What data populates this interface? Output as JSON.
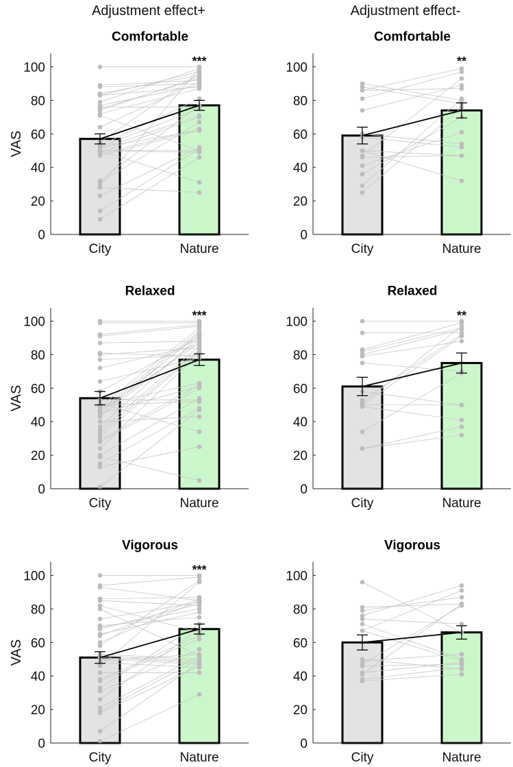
{
  "chart_data": {
    "type": "bar",
    "layout": "3 rows x 2 columns of paired bar charts with individual subject lines",
    "column_titles": [
      "Adjustment effect+",
      "Adjustment effect-"
    ],
    "categories": [
      "City",
      "Nature"
    ],
    "ylabel": "VAS",
    "ylim": [
      0,
      108
    ],
    "yticks": [
      0,
      20,
      40,
      60,
      80,
      100
    ],
    "grid": false,
    "colors": {
      "city": "#e3e3e3",
      "nature": "#ccf7cc",
      "points": "#bcbcbc",
      "lines": "#c6c6c6",
      "mean_line": "#000000"
    },
    "panels": [
      {
        "column": 0,
        "row": 0,
        "title": "Comfortable",
        "significance": "***",
        "means": [
          57,
          77
        ],
        "errors": [
          3,
          3
        ],
        "pairs": [
          [
            100,
            100
          ],
          [
            89,
            92
          ],
          [
            88,
            90
          ],
          [
            84,
            95
          ],
          [
            83,
            88
          ],
          [
            83,
            97
          ],
          [
            79,
            99
          ],
          [
            77,
            89
          ],
          [
            76,
            76
          ],
          [
            75,
            93
          ],
          [
            74,
            94
          ],
          [
            72,
            87
          ],
          [
            71,
            50
          ],
          [
            64,
            91
          ],
          [
            55,
            96
          ],
          [
            53,
            81
          ],
          [
            52,
            75
          ],
          [
            51,
            71
          ],
          [
            50,
            50
          ],
          [
            50,
            49
          ],
          [
            49,
            70
          ],
          [
            48,
            63
          ],
          [
            47,
            62
          ],
          [
            32,
            77
          ],
          [
            31,
            67
          ],
          [
            29,
            99
          ],
          [
            28,
            25
          ],
          [
            23,
            52
          ],
          [
            14,
            51
          ],
          [
            9,
            46
          ],
          [
            50,
            31
          ],
          [
            52,
            62
          ]
        ]
      },
      {
        "column": 1,
        "row": 0,
        "title": "Comfortable",
        "significance": "**",
        "means": [
          59,
          74
        ],
        "errors": [
          5,
          4.5
        ],
        "pairs": [
          [
            90,
            80
          ],
          [
            88,
            78
          ],
          [
            86,
            87
          ],
          [
            86,
            99
          ],
          [
            81,
            97
          ],
          [
            74,
            89
          ],
          [
            60,
            54
          ],
          [
            58,
            52
          ],
          [
            50,
            47
          ],
          [
            47,
            93
          ],
          [
            46,
            47
          ],
          [
            41,
            61
          ],
          [
            36,
            70
          ],
          [
            29,
            81
          ],
          [
            25,
            76
          ],
          [
            50,
            32
          ]
        ]
      },
      {
        "column": 0,
        "row": 1,
        "title": "Relaxed",
        "significance": "***",
        "means": [
          54,
          77
        ],
        "errors": [
          4,
          3.5
        ],
        "pairs": [
          [
            100,
            100
          ],
          [
            99,
            99
          ],
          [
            92,
            98
          ],
          [
            91,
            97
          ],
          [
            87,
            88
          ],
          [
            81,
            79
          ],
          [
            80,
            84
          ],
          [
            77,
            80
          ],
          [
            72,
            86
          ],
          [
            64,
            78
          ],
          [
            58,
            90
          ],
          [
            53,
            53
          ],
          [
            51,
            34
          ],
          [
            50,
            63
          ],
          [
            49,
            96
          ],
          [
            47,
            94
          ],
          [
            46,
            92
          ],
          [
            45,
            61
          ],
          [
            44,
            93
          ],
          [
            43,
            89
          ],
          [
            37,
            91
          ],
          [
            35,
            85
          ],
          [
            33,
            83
          ],
          [
            31,
            82
          ],
          [
            29,
            62
          ],
          [
            28,
            60
          ],
          [
            24,
            81
          ],
          [
            20,
            54
          ],
          [
            19,
            5
          ],
          [
            15,
            48
          ],
          [
            13,
            25
          ],
          [
            1,
            47
          ],
          [
            50,
            52
          ],
          [
            46,
            87
          ],
          [
            40,
            43
          ]
        ]
      },
      {
        "column": 1,
        "row": 1,
        "title": "Relaxed",
        "significance": "**",
        "means": [
          61,
          75
        ],
        "errors": [
          5.5,
          6
        ],
        "pairs": [
          [
            100,
            100
          ],
          [
            93,
            93
          ],
          [
            83,
            99
          ],
          [
            82,
            96
          ],
          [
            80,
            95
          ],
          [
            79,
            88
          ],
          [
            75,
            70
          ],
          [
            58,
            50
          ],
          [
            53,
            92
          ],
          [
            51,
            97
          ],
          [
            50,
            50
          ],
          [
            50,
            91
          ],
          [
            49,
            41
          ],
          [
            34,
            69
          ],
          [
            24,
            37
          ],
          [
            24,
            32
          ]
        ]
      },
      {
        "column": 0,
        "row": 2,
        "title": "Vigorous",
        "significance": "***",
        "means": [
          51,
          68
        ],
        "errors": [
          3.5,
          3
        ],
        "pairs": [
          [
            100,
            100
          ],
          [
            94,
            99
          ],
          [
            93,
            85
          ],
          [
            86,
            87
          ],
          [
            85,
            82
          ],
          [
            82,
            66
          ],
          [
            80,
            52
          ],
          [
            74,
            84
          ],
          [
            70,
            75
          ],
          [
            69,
            80
          ],
          [
            68,
            83
          ],
          [
            65,
            78
          ],
          [
            64,
            86
          ],
          [
            60,
            85
          ],
          [
            58,
            97
          ],
          [
            53,
            50
          ],
          [
            52,
            49
          ],
          [
            51,
            48
          ],
          [
            50,
            47
          ],
          [
            49,
            53
          ],
          [
            48,
            45
          ],
          [
            46,
            96
          ],
          [
            42,
            42
          ],
          [
            38,
            64
          ],
          [
            37,
            62
          ],
          [
            33,
            71
          ],
          [
            31,
            56
          ],
          [
            26,
            68
          ],
          [
            21,
            52
          ],
          [
            19,
            50
          ],
          [
            18,
            46
          ],
          [
            7,
            48
          ],
          [
            1,
            29
          ]
        ]
      },
      {
        "column": 1,
        "row": 2,
        "title": "Vigorous",
        "significance": "",
        "means": [
          60,
          66
        ],
        "errors": [
          4.5,
          4
        ],
        "pairs": [
          [
            96,
            66
          ],
          [
            81,
            83
          ],
          [
            79,
            87
          ],
          [
            76,
            94
          ],
          [
            74,
            71
          ],
          [
            71,
            50
          ],
          [
            67,
            49
          ],
          [
            67,
            91
          ],
          [
            50,
            44
          ],
          [
            49,
            53
          ],
          [
            47,
            82
          ],
          [
            46,
            47
          ],
          [
            42,
            48
          ],
          [
            41,
            83
          ],
          [
            38,
            45
          ],
          [
            37,
            41
          ]
        ]
      }
    ]
  }
}
